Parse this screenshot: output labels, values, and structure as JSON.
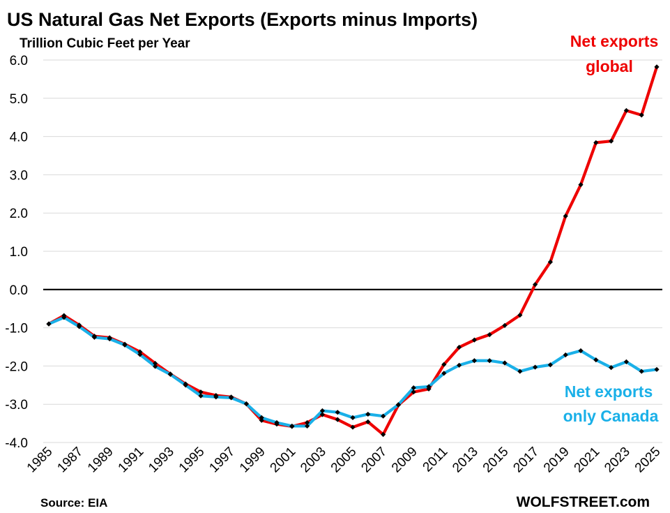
{
  "chart_data": {
    "type": "line",
    "title": "US Natural Gas Net Exports (Exports minus Imports)",
    "ylabel": "Trillion Cubic Feet per Year",
    "source": "Source: EIA",
    "watermark": "WOLFSTREET.com",
    "ylim": [
      -4.0,
      6.0
    ],
    "y_ticks": [
      "6.0",
      "5.0",
      "4.0",
      "3.0",
      "2.0",
      "1.0",
      "0.0",
      "-1.0",
      "-2.0",
      "-3.0",
      "-4.0"
    ],
    "x": [
      1985,
      1986,
      1987,
      1988,
      1989,
      1990,
      1991,
      1992,
      1993,
      1994,
      1995,
      1996,
      1997,
      1998,
      1999,
      2000,
      2001,
      2002,
      2003,
      2004,
      2005,
      2006,
      2007,
      2008,
      2009,
      2010,
      2011,
      2012,
      2013,
      2014,
      2015,
      2016,
      2017,
      2018,
      2019,
      2020,
      2021,
      2022,
      2023,
      2024,
      2025
    ],
    "x_ticks": [
      "1985",
      "1987",
      "1989",
      "1991",
      "1993",
      "1995",
      "1997",
      "1999",
      "2001",
      "2003",
      "2005",
      "2007",
      "2009",
      "2011",
      "2013",
      "2015",
      "2017",
      "2019",
      "2021",
      "2023",
      "2025"
    ],
    "zero_line": true,
    "series": [
      {
        "name": "Net exports global",
        "label_lines": [
          "Net exports",
          "global"
        ],
        "color": "#ee0000",
        "values": [
          -0.9,
          -0.68,
          -0.93,
          -1.22,
          -1.26,
          -1.43,
          -1.63,
          -1.93,
          -2.21,
          -2.47,
          -2.68,
          -2.77,
          -2.81,
          -2.99,
          -3.42,
          -3.52,
          -3.58,
          -3.48,
          -3.27,
          -3.4,
          -3.6,
          -3.46,
          -3.79,
          -3.02,
          -2.68,
          -2.6,
          -1.96,
          -1.51,
          -1.32,
          -1.18,
          -0.94,
          -0.67,
          0.13,
          0.72,
          1.92,
          2.74,
          3.84,
          3.88,
          4.68,
          4.56,
          5.82
        ]
      },
      {
        "name": "Net exports only Canada",
        "label_lines": [
          "Net exports",
          "only Canada"
        ],
        "color": "#1ab0e8",
        "values": [
          -0.9,
          -0.73,
          -0.97,
          -1.25,
          -1.29,
          -1.45,
          -1.7,
          -2.01,
          -2.22,
          -2.5,
          -2.78,
          -2.81,
          -2.83,
          -2.99,
          -3.35,
          -3.48,
          -3.57,
          -3.57,
          -3.17,
          -3.21,
          -3.35,
          -3.26,
          -3.31,
          -3.01,
          -2.57,
          -2.54,
          -2.19,
          -1.98,
          -1.86,
          -1.86,
          -1.92,
          -2.14,
          -2.03,
          -1.97,
          -1.71,
          -1.6,
          -1.84,
          -2.04,
          -1.89,
          -2.14,
          -2.09
        ]
      }
    ]
  }
}
